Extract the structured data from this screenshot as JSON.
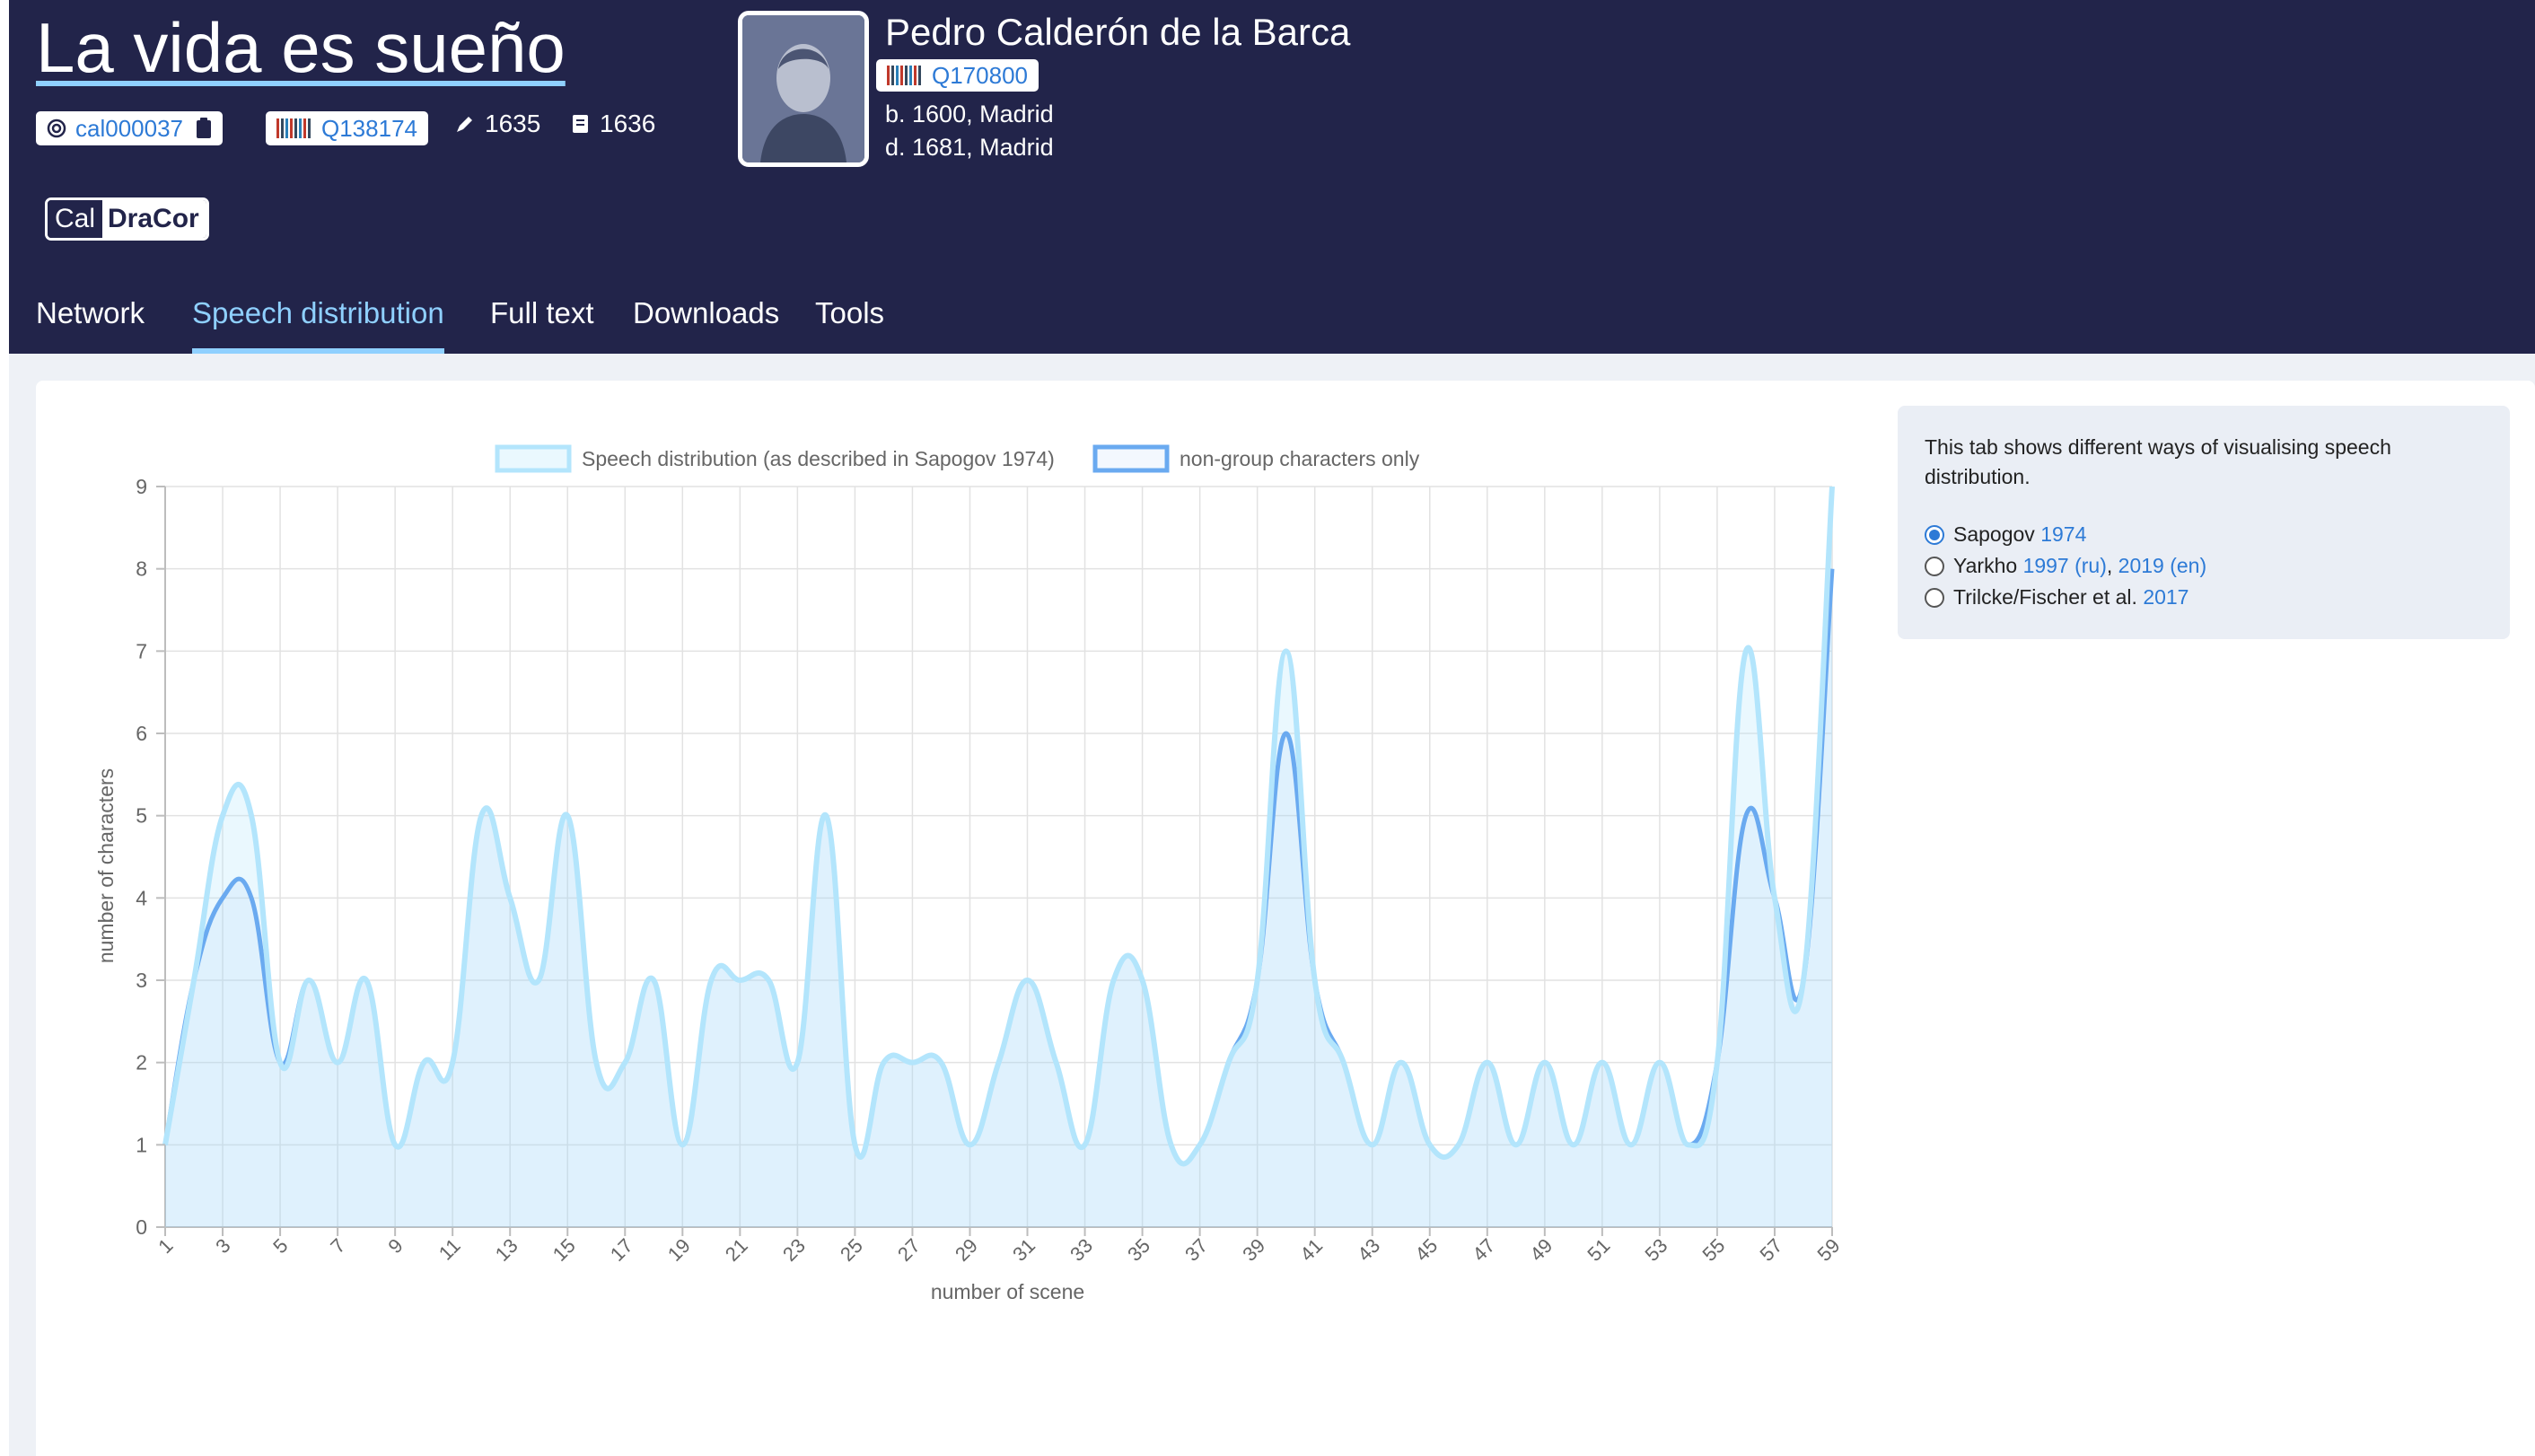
{
  "play": {
    "title": "La vida es sueño",
    "id": "cal000037",
    "wikidata": "Q138174",
    "written": "1635",
    "printed": "1636"
  },
  "author": {
    "name": "Pedro Calderón de la Barca",
    "wikidata": "Q170800",
    "born": "b. 1600, Madrid",
    "died": "d. 1681, Madrid"
  },
  "corpus": {
    "logo_left": "Cal",
    "logo_right": "DraCor"
  },
  "tabs": [
    {
      "label": "Network"
    },
    {
      "label": "Speech distribution",
      "active": true
    },
    {
      "label": "Full text"
    },
    {
      "label": "Downloads"
    },
    {
      "label": "Tools"
    }
  ],
  "sidebar": {
    "description": "This tab shows different ways of visualising speech distribution.",
    "options": [
      {
        "name": "Sapogov",
        "links": [
          "1974"
        ],
        "selected": true
      },
      {
        "name": "Yarkho",
        "links": [
          "1997 (ru)",
          "2019 (en)"
        ],
        "selected": false
      },
      {
        "name": "Trilcke/Fischer et al.",
        "links": [
          "2017"
        ],
        "selected": false
      }
    ]
  },
  "colors": {
    "header_bg": "#22244a",
    "accent": "#8fd0ff",
    "link": "#2d7ad6",
    "series_1": "#b3e5fc",
    "series_2": "#6aaaf0"
  },
  "chart_data": {
    "type": "line",
    "xlabel": "number of scene",
    "ylabel": "number of characters",
    "ylim": [
      0,
      9
    ],
    "xlim": [
      1,
      59
    ],
    "grid": true,
    "legend_position": "top-center",
    "x": [
      1,
      2,
      3,
      4,
      5,
      6,
      7,
      8,
      9,
      10,
      11,
      12,
      13,
      14,
      15,
      16,
      17,
      18,
      19,
      20,
      21,
      22,
      23,
      24,
      25,
      26,
      27,
      28,
      29,
      30,
      31,
      32,
      33,
      34,
      35,
      36,
      37,
      38,
      39,
      40,
      41,
      42,
      43,
      44,
      45,
      46,
      47,
      48,
      49,
      50,
      51,
      52,
      53,
      54,
      55,
      56,
      57,
      58,
      59
    ],
    "x_tick_labels": [
      "1",
      "3",
      "5",
      "7",
      "9",
      "11",
      "13",
      "15",
      "17",
      "19",
      "21",
      "23",
      "25",
      "27",
      "29",
      "31",
      "33",
      "35",
      "37",
      "39",
      "41",
      "43",
      "45",
      "47",
      "49",
      "51",
      "53",
      "55",
      "57",
      "59"
    ],
    "y_tick_labels": [
      "0",
      "1",
      "2",
      "3",
      "4",
      "5",
      "6",
      "7",
      "8",
      "9"
    ],
    "series": [
      {
        "name": "Speech distribution (as described in Sapogov 1974)",
        "values": [
          1,
          3,
          5,
          5,
          2,
          3,
          2,
          3,
          1,
          2,
          2,
          5,
          4,
          3,
          5,
          2,
          2,
          3,
          1,
          3,
          3,
          3,
          2,
          5,
          1,
          2,
          2,
          2,
          1,
          2,
          3,
          2,
          1,
          3,
          3,
          1,
          1,
          2,
          3,
          7,
          3,
          2,
          1,
          2,
          1,
          1,
          2,
          1,
          2,
          1,
          2,
          1,
          2,
          1,
          2,
          7,
          4,
          3,
          9
        ]
      },
      {
        "name": "non-group characters only",
        "values": [
          1,
          3,
          4,
          4,
          2,
          3,
          2,
          3,
          1,
          2,
          2,
          5,
          4,
          3,
          5,
          2,
          2,
          3,
          1,
          3,
          3,
          3,
          2,
          5,
          1,
          2,
          2,
          2,
          1,
          2,
          3,
          2,
          1,
          3,
          3,
          1,
          1,
          2,
          3,
          6,
          3,
          2,
          1,
          2,
          1,
          1,
          2,
          1,
          2,
          1,
          2,
          1,
          2,
          1,
          2,
          5,
          4,
          3,
          8
        ]
      }
    ]
  }
}
